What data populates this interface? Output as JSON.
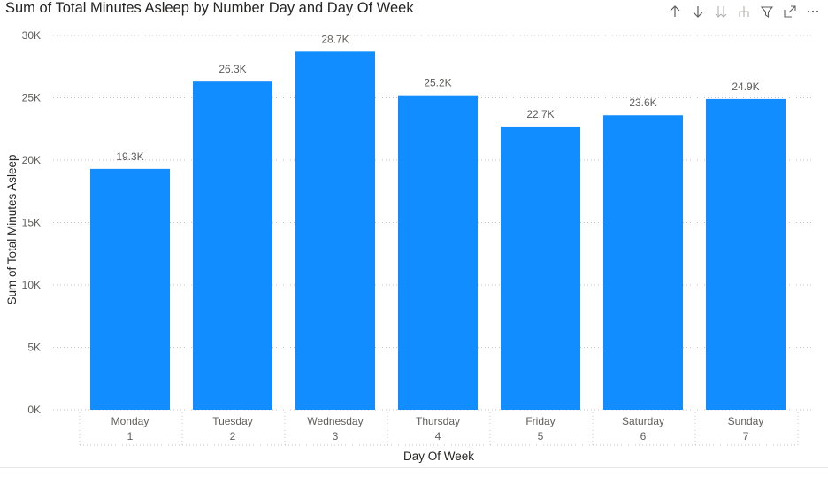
{
  "title": "Sum of Total Minutes Asleep by Number Day and Day Of Week",
  "toolbar": {
    "icons": [
      "arrow-up-icon",
      "arrow-down-icon",
      "double-arrow-down-icon",
      "expand-hierarchy-icon",
      "filter-icon",
      "focus-mode-icon",
      "more-options-icon"
    ]
  },
  "colors": {
    "bar": "#118DFF",
    "grid": "#C8C6C4",
    "text": "#605E5C",
    "title": "#252423"
  },
  "chart_data": {
    "type": "bar",
    "categories": [
      "Monday",
      "Tuesday",
      "Wednesday",
      "Thursday",
      "Friday",
      "Saturday",
      "Sunday"
    ],
    "sub_categories": [
      "1",
      "2",
      "3",
      "4",
      "5",
      "6",
      "7"
    ],
    "values": [
      19300,
      26300,
      28700,
      25200,
      22700,
      23600,
      24900
    ],
    "data_labels": [
      "19.3K",
      "26.3K",
      "28.7K",
      "25.2K",
      "22.7K",
      "23.6K",
      "24.9K"
    ],
    "y_ticks": [
      0,
      5000,
      10000,
      15000,
      20000,
      25000,
      30000
    ],
    "y_tick_labels": [
      "0K",
      "5K",
      "10K",
      "15K",
      "20K",
      "25K",
      "30K"
    ],
    "ylim": [
      0,
      30000
    ],
    "xlabel": "Day Of Week",
    "ylabel": "Sum of Total Minutes Asleep",
    "grid": true
  }
}
